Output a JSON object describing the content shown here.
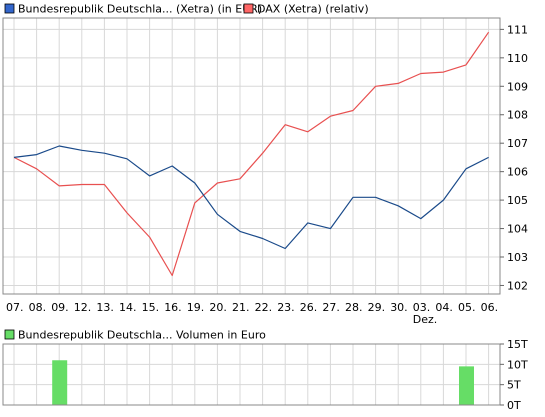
{
  "colors": {
    "primary_series": "#1a4a8a",
    "primary_legend": "#3366cc",
    "secondary_series": "#e85050",
    "secondary_legend": "#ff6666",
    "volume_bar": "#66dd66",
    "grid": "#d8d8d8",
    "frame": "#888888"
  },
  "chart_data": [
    {
      "type": "line",
      "legend_position": "top-left",
      "series": [
        {
          "name": "Bundesrepublik Deutschla... (Xetra) (in EUR)",
          "values": [
            106.5,
            106.6,
            106.9,
            106.75,
            106.65,
            106.45,
            105.85,
            106.2,
            105.6,
            104.5,
            103.9,
            103.65,
            103.3,
            104.2,
            104.0,
            105.1,
            105.1,
            104.8,
            104.35,
            105.0,
            106.1,
            106.5
          ]
        },
        {
          "name": "DAX (Xetra) (relativ)",
          "values": [
            106.5,
            106.1,
            105.5,
            105.55,
            105.55,
            104.55,
            103.7,
            102.35,
            104.9,
            105.6,
            105.75,
            106.65,
            107.65,
            107.4,
            107.95,
            108.15,
            109.0,
            109.1,
            109.45,
            109.5,
            109.75,
            110.9
          ]
        }
      ],
      "categories": [
        "07.",
        "08.",
        "09.",
        "12.",
        "13.",
        "14.",
        "15.",
        "16.",
        "19.",
        "20.",
        "21.",
        "22.",
        "23.",
        "26.",
        "27.",
        "28.",
        "29.",
        "30.",
        "03.",
        "04.",
        "05.",
        "06."
      ],
      "month_label": "Dez.",
      "month_label_index": 18,
      "y_ticks": [
        102,
        103,
        104,
        105,
        106,
        107,
        108,
        109,
        110,
        111
      ],
      "ylim": [
        101.7,
        111.4
      ],
      "grid": true
    },
    {
      "type": "bar",
      "legend_position": "top-left",
      "series": [
        {
          "name": "Bundesrepublik Deutschla... Volumen in Euro",
          "values": [
            0,
            0,
            11,
            0,
            0,
            0,
            0,
            0,
            0,
            0,
            0,
            0,
            0,
            0,
            0,
            0,
            0,
            0,
            0,
            0,
            9.5,
            0
          ]
        }
      ],
      "y_ticks": [
        "0T",
        "5T",
        "10T",
        "15T"
      ],
      "y_tick_values": [
        0,
        5,
        10,
        15
      ],
      "ylim": [
        0,
        15
      ],
      "grid": true
    }
  ]
}
